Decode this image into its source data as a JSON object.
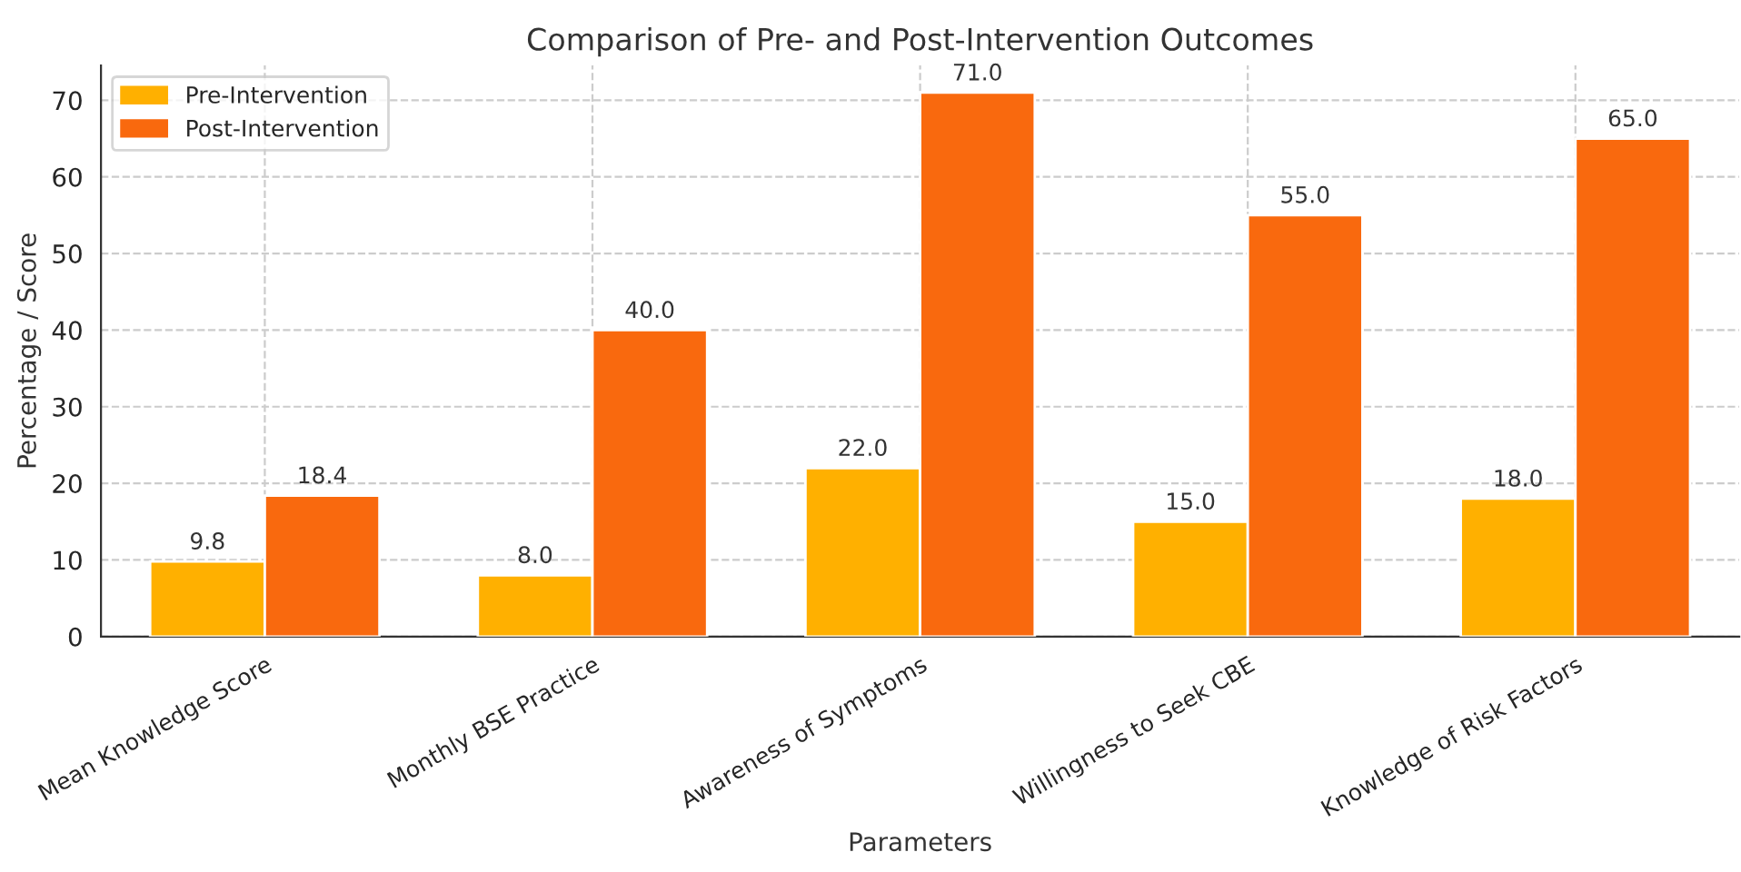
{
  "chart_data": {
    "type": "bar",
    "title": "Comparison of Pre- and Post-Intervention Outcomes",
    "xlabel": "Parameters",
    "ylabel": "Percentage / Score",
    "categories": [
      "Mean Knowledge Score",
      "Monthly BSE Practice",
      "Awareness of Symptoms",
      "Willingness to Seek CBE",
      "Knowledge of Risk Factors"
    ],
    "series": [
      {
        "name": "Pre-Intervention",
        "color": "#ffb000",
        "values": [
          9.8,
          8.0,
          22.0,
          15.0,
          18.0
        ],
        "value_labels": [
          "9.8",
          "8.0",
          "22.0",
          "15.0",
          "18.0"
        ]
      },
      {
        "name": "Post-Intervention",
        "color": "#f9690e",
        "values": [
          18.4,
          40.0,
          71.0,
          55.0,
          65.0
        ],
        "value_labels": [
          "18.4",
          "40.0",
          "71.0",
          "55.0",
          "65.0"
        ]
      }
    ],
    "ylim": [
      0,
      74.55
    ],
    "yticks": [
      0,
      10,
      20,
      30,
      40,
      50,
      60,
      70
    ],
    "grid": true,
    "legend": "top left"
  }
}
